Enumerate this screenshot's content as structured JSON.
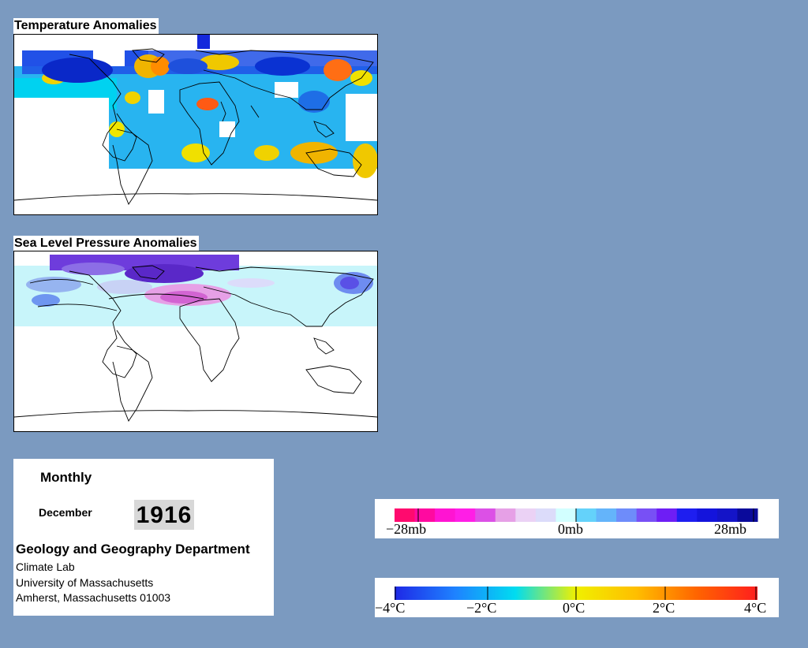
{
  "maps": {
    "temperature": {
      "title": "Temperature Anomalies"
    },
    "pressure": {
      "title": "Sea Level Pressure Anomalies"
    }
  },
  "info": {
    "mode": "Monthly",
    "month": "December",
    "year": "1916",
    "department": "Geology and Geography Department",
    "lab": "Climate Lab",
    "university": "University of Massachusetts",
    "address": "Amherst, Massachusetts 01003"
  },
  "legends": {
    "pressure": {
      "labels": [
        "−28mb",
        "0mb",
        "28mb"
      ],
      "colors": [
        "#ff0a6e",
        "#ff0aa0",
        "#ff14d2",
        "#ff1ee6",
        "#dc50e6",
        "#e6a0e6",
        "#ebd2f5",
        "#dcdcfa",
        "#d2ffff",
        "#64d2fa",
        "#64b4fa",
        "#6e8cfa",
        "#7850f5",
        "#6e1ef5",
        "#1e1ef0",
        "#1414dc",
        "#1414c8",
        "#0a0a9b"
      ]
    },
    "temperature": {
      "labels": [
        "−4°C",
        "−2°C",
        "0°C",
        "2°C",
        "4°C"
      ],
      "gradient": [
        "#1e28e6",
        "#1e82ff",
        "#00dcf0",
        "#f0f000",
        "#ffbe00",
        "#ff6400",
        "#ff1e1e"
      ]
    }
  }
}
